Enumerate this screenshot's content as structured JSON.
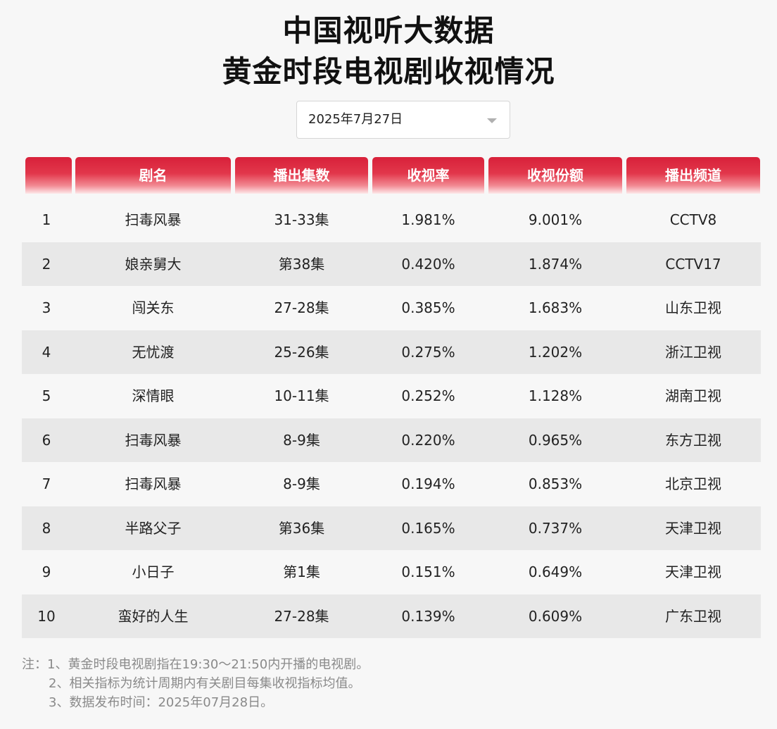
{
  "title": {
    "line1": "中国视听大数据",
    "line2": "黄金时段电视剧收视情况"
  },
  "date_select": {
    "value": "2025年7月27日",
    "icon": "chevron-down-icon"
  },
  "table": {
    "headers": [
      "",
      "剧名",
      "播出集数",
      "收视率",
      "收视份额",
      "播出频道"
    ],
    "rows": [
      [
        "1",
        "扫毒风暴",
        "31-33集",
        "1.981%",
        "9.001%",
        "CCTV8"
      ],
      [
        "2",
        "娘亲舅大",
        "第38集",
        "0.420%",
        "1.874%",
        "CCTV17"
      ],
      [
        "3",
        "闯关东",
        "27-28集",
        "0.385%",
        "1.683%",
        "山东卫视"
      ],
      [
        "4",
        "无忧渡",
        "25-26集",
        "0.275%",
        "1.202%",
        "浙江卫视"
      ],
      [
        "5",
        "深情眼",
        "10-11集",
        "0.252%",
        "1.128%",
        "湖南卫视"
      ],
      [
        "6",
        "扫毒风暴",
        "8-9集",
        "0.220%",
        "0.965%",
        "东方卫视"
      ],
      [
        "7",
        "扫毒风暴",
        "8-9集",
        "0.194%",
        "0.853%",
        "北京卫视"
      ],
      [
        "8",
        "半路父子",
        "第36集",
        "0.165%",
        "0.737%",
        "天津卫视"
      ],
      [
        "9",
        "小日子",
        "第1集",
        "0.151%",
        "0.649%",
        "天津卫视"
      ],
      [
        "10",
        "蛮好的人生",
        "27-28集",
        "0.139%",
        "0.609%",
        "广东卫视"
      ]
    ]
  },
  "notes": [
    "注：1、黄金时段电视剧指在19:30～21:50内开播的电视剧。",
    "2、相关指标为统计周期内有关剧目每集收视指标均值。",
    "3、数据发布时间：2025年07月28日。"
  ],
  "colors": {
    "header_red": "#d8213a",
    "row_alt": "#e8e8e8",
    "note_text": "#8a8a8a"
  }
}
